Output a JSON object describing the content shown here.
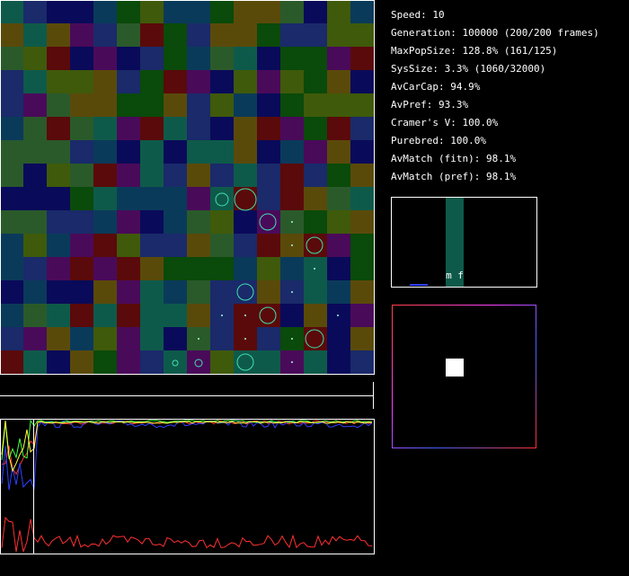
{
  "stats": [
    "Speed: 10",
    "Generation: 100000 (200/200 frames)",
    "MaxPopSize: 128.8% (161/125)",
    "SysSize: 3.3% (1060/32000)",
    "AvCarCap: 94.9%",
    "AvPref: 93.3%",
    "Cramer's V: 100.0%",
    "Purebred: 100.0%",
    "AvMatch (fitn): 98.1%",
    "AvMatch (pref): 98.1%"
  ],
  "histogram": {
    "label": "m f"
  }
}
